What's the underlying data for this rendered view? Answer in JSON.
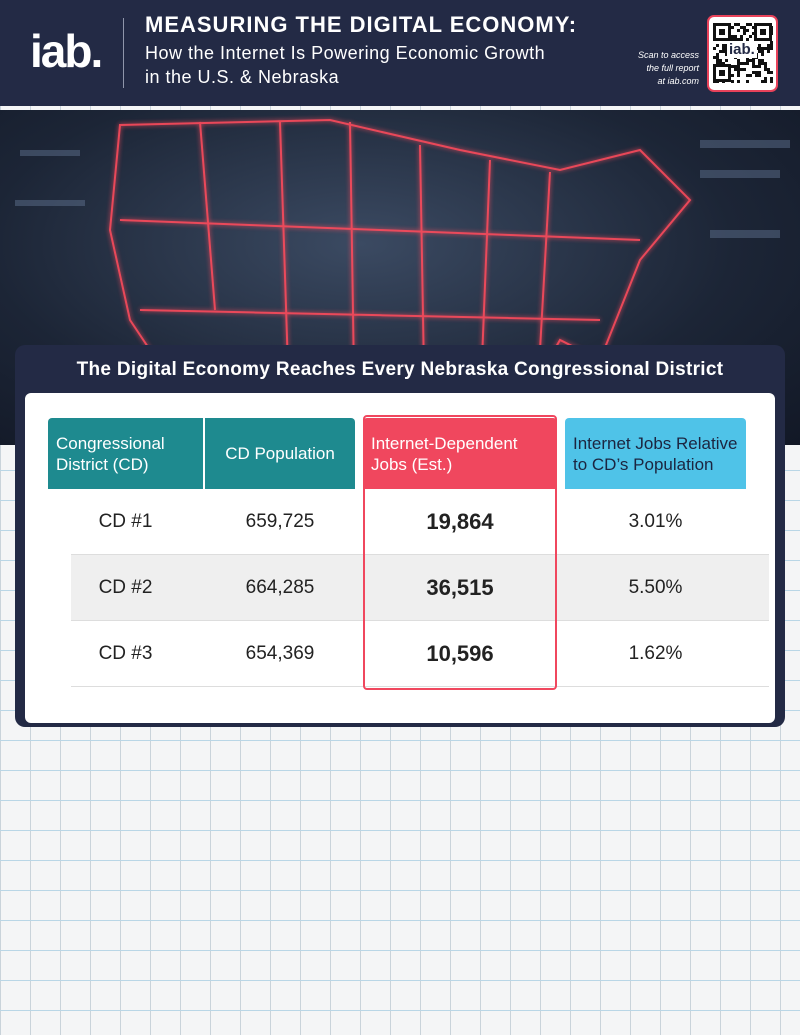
{
  "header": {
    "logo": "iab.",
    "title": "MEASURING THE DIGITAL ECONOMY:",
    "subtitle": [
      "How the Internet Is Powering Economic Growth",
      "in the U.S. & Nebraska"
    ],
    "scan_note": [
      "Scan to access",
      "the full report",
      "at iab.com"
    ],
    "qr_logo": "iab."
  },
  "table": {
    "title": "The Digital Economy Reaches Every Nebraska Congressional District",
    "columns": [
      "Congressional District (CD)",
      "CD Population",
      "Internet-Dependent Jobs (Est.)",
      "Internet Jobs Relative to CD’s Population"
    ],
    "rows": [
      [
        "CD #1",
        "659,725",
        "19,864",
        "3.01%"
      ],
      [
        "CD #2",
        "664,285",
        "36,515",
        "5.50%"
      ],
      [
        "CD #3",
        "654,369",
        "10,596",
        "1.62%"
      ]
    ]
  }
}
